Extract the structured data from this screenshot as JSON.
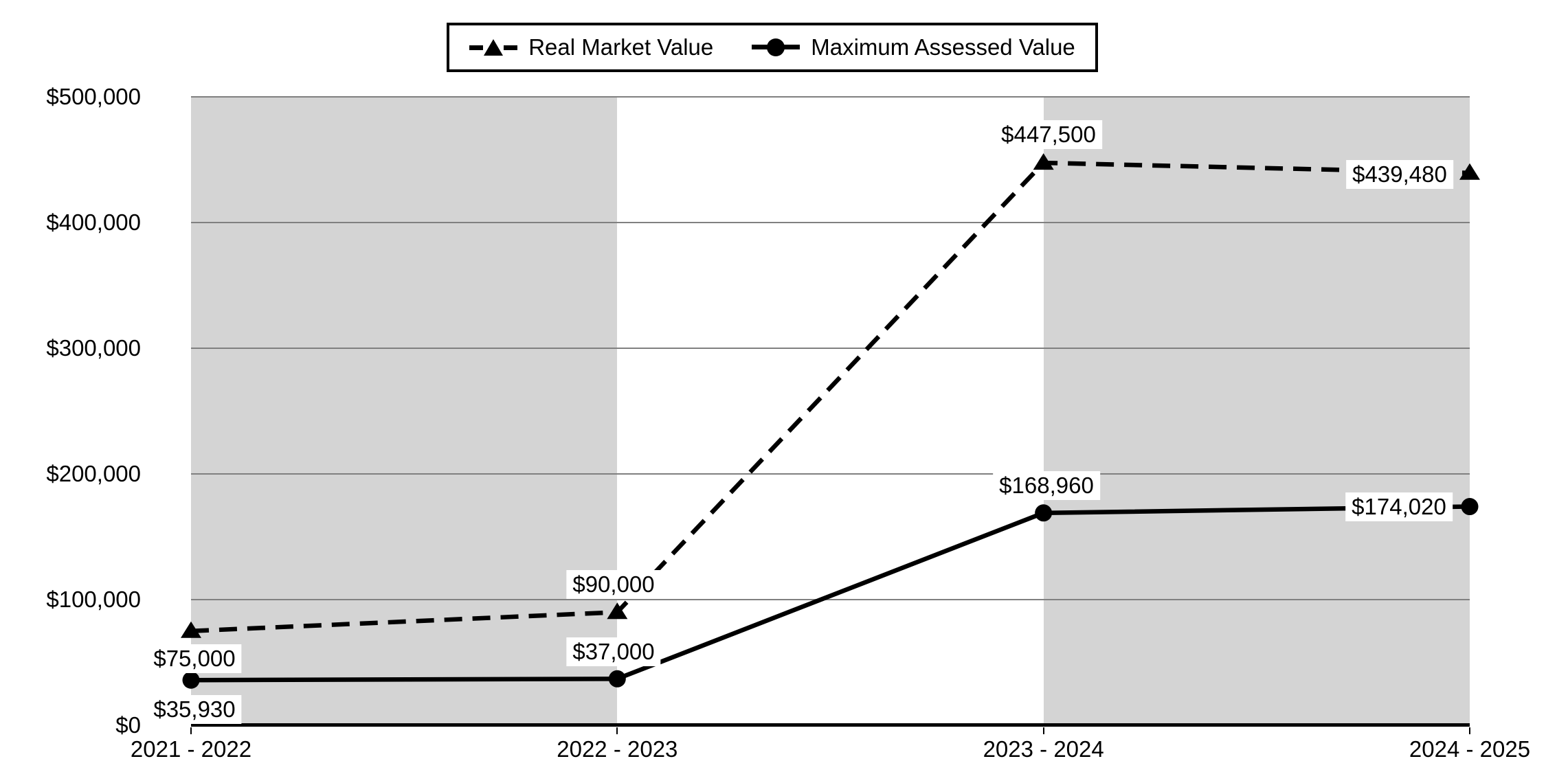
{
  "chart_data": {
    "type": "line",
    "title": "",
    "categories": [
      "2021 - 2022",
      "2022 - 2023",
      "2023 - 2024",
      "2024 - 2025"
    ],
    "series": [
      {
        "name": "Real Market Value",
        "line_style": "dashed",
        "marker": "triangle",
        "color": "#000000",
        "values": [
          75000,
          90000,
          447500,
          439480
        ],
        "labels": [
          "$75,000",
          "$90,000",
          "$447,500",
          "$439,480"
        ]
      },
      {
        "name": "Maximum Assessed Value",
        "line_style": "solid",
        "marker": "circle",
        "color": "#000000",
        "values": [
          35930,
          37000,
          168960,
          174020
        ],
        "labels": [
          "$35,930",
          "$37,000",
          "$168,960",
          "$174,020"
        ]
      }
    ],
    "y_axis": {
      "min": 0,
      "max": 500000,
      "tick_interval": 100000,
      "tick_labels": [
        "$0",
        "$100,000",
        "$200,000",
        "$300,000",
        "$400,000",
        "$500,000"
      ]
    },
    "legend_position": "top",
    "grid": true,
    "plot_bands": [
      {
        "from_index": 0,
        "to_index": 1
      },
      {
        "from_index": 2,
        "to_index": 3
      }
    ],
    "colors": {
      "band": "#d4d4d4",
      "gridline": "#808080",
      "axis": "#000000",
      "series": "#000000",
      "label_background": "#ffffff"
    }
  }
}
